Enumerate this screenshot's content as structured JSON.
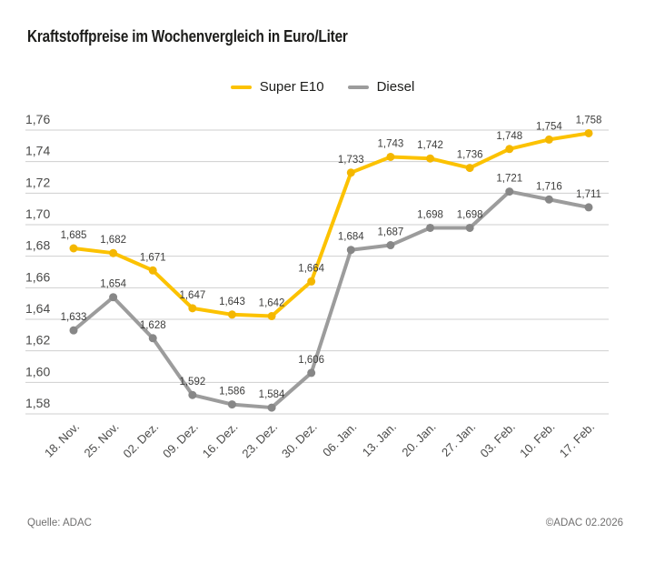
{
  "header": {
    "title": "Kraftstoffpreise im Wochenvergleich in Euro/Liter"
  },
  "chart_data": {
    "type": "line",
    "title": "Kraftstoffpreise im Wochenvergleich in Euro/Liter",
    "categories": [
      "18. Nov.",
      "25. Nov.",
      "02. Dez.",
      "09. Dez.",
      "16. Dez.",
      "23. Dez.",
      "30. Dez.",
      "06. Jan.",
      "13. Jan.",
      "20. Jan.",
      "27. Jan.",
      "03. Feb.",
      "10. Feb.",
      "17. Feb."
    ],
    "series": [
      {
        "name": "Super E10",
        "color": "#FCC200",
        "dot_color": "#F4B700",
        "values": [
          1.685,
          1.682,
          1.671,
          1.647,
          1.643,
          1.642,
          1.664,
          1.733,
          1.743,
          1.742,
          1.736,
          1.748,
          1.754,
          1.758
        ]
      },
      {
        "name": "Diesel",
        "color": "#9C9C9C",
        "dot_color": "#878787",
        "values": [
          1.633,
          1.654,
          1.628,
          1.592,
          1.586,
          1.584,
          1.606,
          1.684,
          1.687,
          1.698,
          1.698,
          1.721,
          1.716,
          1.711
        ]
      }
    ],
    "ylim": [
      1.58,
      1.76
    ],
    "ytick_step": 0.02,
    "tick_decimals": 2,
    "value_decimals": 3,
    "decimal_separator": ",",
    "grid": true,
    "grid_color": "#CFCFCF",
    "axis_text_color": "#4A4A49",
    "data_label_color": "#3C3C3B",
    "data_labels": true,
    "legend_position": "top-center",
    "xlabel": "",
    "ylabel": ""
  },
  "footer": {
    "source": "Quelle: ADAC",
    "copyright": "©ADAC 02.2026"
  }
}
